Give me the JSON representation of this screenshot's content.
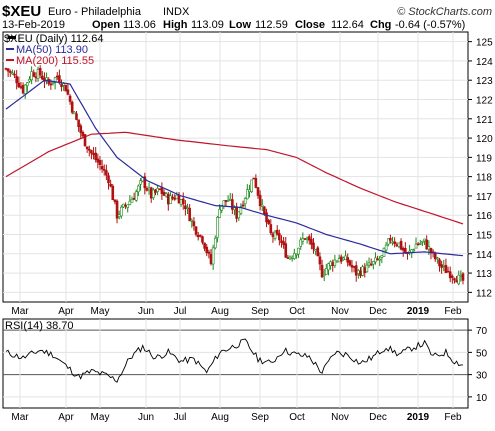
{
  "header": {
    "symbol": "$XEU",
    "name": "Euro - Philadelphia",
    "exchange": "INDX",
    "credit": "© StockCharts.com",
    "date": "13-Feb-2019",
    "open_label": "Open",
    "open": "113.06",
    "high_label": "High",
    "high": "113.09",
    "low_label": "Low",
    "low": "112.59",
    "close_label": "Close",
    "close": "112.64",
    "chg_label": "Chg",
    "chg": "-0.64 (-0.57%)"
  },
  "legend": {
    "price": "$XEU (Daily) 112.64",
    "ma50": "MA(50) 113.90",
    "ma200": "MA(200) 115.55",
    "rsi": "RSI(14) 38.70"
  },
  "colors": {
    "candle_up": "#1a8a1a",
    "candle_down": "#b01010",
    "ma50": "#2b2b9e",
    "ma200": "#c0142c",
    "rsi": "#000000",
    "grid": "#e3e3e3",
    "background": "#ffffff"
  },
  "chart_data": [
    {
      "type": "candlestick",
      "title": "$XEU Euro - Philadelphia INDX",
      "ylim": [
        111.5,
        125.5
      ],
      "y_ticks": [
        112,
        113,
        114,
        115,
        116,
        117,
        118,
        119,
        120,
        121,
        122,
        123,
        124,
        125
      ],
      "x_ticks": [
        "Mar",
        "Apr",
        "May",
        "Jun",
        "Jul",
        "Aug",
        "Sep",
        "Oct",
        "Nov",
        "Dec",
        "2019",
        "Feb"
      ],
      "grid": true,
      "legend_position": "top-left",
      "close_approx": [
        [
          0,
          123.6
        ],
        [
          4,
          123.2
        ],
        [
          8,
          122.5
        ],
        [
          12,
          123.4
        ],
        [
          16,
          123.3
        ],
        [
          20,
          122.8
        ],
        [
          24,
          123.2
        ],
        [
          28,
          122.6
        ],
        [
          32,
          121.2
        ],
        [
          36,
          120.0
        ],
        [
          40,
          119.2
        ],
        [
          44,
          118.6
        ],
        [
          48,
          117.9
        ],
        [
          52,
          116.0
        ],
        [
          56,
          116.5
        ],
        [
          60,
          117.0
        ],
        [
          64,
          117.8
        ],
        [
          68,
          117.0
        ],
        [
          72,
          117.3
        ],
        [
          76,
          116.8
        ],
        [
          80,
          117.0
        ],
        [
          84,
          116.5
        ],
        [
          88,
          115.4
        ],
        [
          92,
          114.8
        ],
        [
          96,
          113.5
        ],
        [
          100,
          116.5
        ],
        [
          104,
          116.8
        ],
        [
          108,
          116.0
        ],
        [
          112,
          117.0
        ],
        [
          116,
          118.0
        ],
        [
          120,
          116.3
        ],
        [
          124,
          115.0
        ],
        [
          128,
          114.8
        ],
        [
          132,
          113.8
        ],
        [
          136,
          114.2
        ],
        [
          140,
          114.9
        ],
        [
          144,
          114.3
        ],
        [
          148,
          113.0
        ],
        [
          152,
          113.5
        ],
        [
          156,
          113.8
        ],
        [
          160,
          113.6
        ],
        [
          164,
          113.0
        ],
        [
          168,
          113.2
        ],
        [
          172,
          113.5
        ],
        [
          176,
          113.8
        ],
        [
          180,
          114.8
        ],
        [
          184,
          114.5
        ],
        [
          188,
          113.9
        ],
        [
          192,
          114.5
        ],
        [
          196,
          114.6
        ],
        [
          200,
          113.9
        ],
        [
          204,
          113.3
        ],
        [
          208,
          113.0
        ],
        [
          212,
          112.7
        ],
        [
          214,
          112.6
        ]
      ],
      "series": [
        {
          "name": "MA(50)",
          "points": [
            [
              0,
              121.5
            ],
            [
              18,
              123.0
            ],
            [
              30,
              122.8
            ],
            [
              42,
              120.5
            ],
            [
              52,
              119.0
            ],
            [
              66,
              117.8
            ],
            [
              82,
              117.0
            ],
            [
              98,
              116.5
            ],
            [
              110,
              116.4
            ],
            [
              122,
              116.0
            ],
            [
              136,
              115.6
            ],
            [
              150,
              115.0
            ],
            [
              166,
              114.5
            ],
            [
              180,
              114.0
            ],
            [
              196,
              114.1
            ],
            [
              214,
              113.9
            ]
          ]
        },
        {
          "name": "MA(200)",
          "points": [
            [
              0,
              118.0
            ],
            [
              20,
              119.3
            ],
            [
              40,
              120.2
            ],
            [
              56,
              120.3
            ],
            [
              80,
              119.9
            ],
            [
              104,
              119.6
            ],
            [
              122,
              119.4
            ],
            [
              136,
              119.0
            ],
            [
              150,
              118.2
            ],
            [
              166,
              117.4
            ],
            [
              182,
              116.7
            ],
            [
              196,
              116.2
            ],
            [
              214,
              115.55
            ]
          ]
        }
      ]
    },
    {
      "type": "line",
      "title": "RSI(14)",
      "ylim": [
        0,
        80
      ],
      "y_ticks": [
        10,
        30,
        50,
        70
      ],
      "reference_lines": [
        30,
        70
      ],
      "x_ticks": [
        "Mar",
        "Apr",
        "May",
        "Jun",
        "Jul",
        "Aug",
        "Sep",
        "Oct",
        "Nov",
        "Dec",
        "2019",
        "Feb"
      ],
      "series": [
        {
          "name": "RSI(14)",
          "points": [
            [
              0,
              50
            ],
            [
              8,
              45
            ],
            [
              16,
              52
            ],
            [
              22,
              48
            ],
            [
              28,
              38
            ],
            [
              34,
              28
            ],
            [
              40,
              33
            ],
            [
              46,
              30
            ],
            [
              52,
              25
            ],
            [
              58,
              45
            ],
            [
              64,
              55
            ],
            [
              70,
              45
            ],
            [
              76,
              50
            ],
            [
              82,
              42
            ],
            [
              88,
              44
            ],
            [
              94,
              32
            ],
            [
              100,
              50
            ],
            [
              106,
              55
            ],
            [
              112,
              60
            ],
            [
              118,
              44
            ],
            [
              124,
              40
            ],
            [
              130,
              52
            ],
            [
              136,
              48
            ],
            [
              142,
              46
            ],
            [
              148,
              32
            ],
            [
              154,
              50
            ],
            [
              160,
              48
            ],
            [
              166,
              40
            ],
            [
              172,
              46
            ],
            [
              178,
              55
            ],
            [
              184,
              48
            ],
            [
              190,
              54
            ],
            [
              196,
              58
            ],
            [
              200,
              46
            ],
            [
              206,
              50
            ],
            [
              210,
              42
            ],
            [
              214,
              38.7
            ]
          ]
        }
      ]
    }
  ]
}
